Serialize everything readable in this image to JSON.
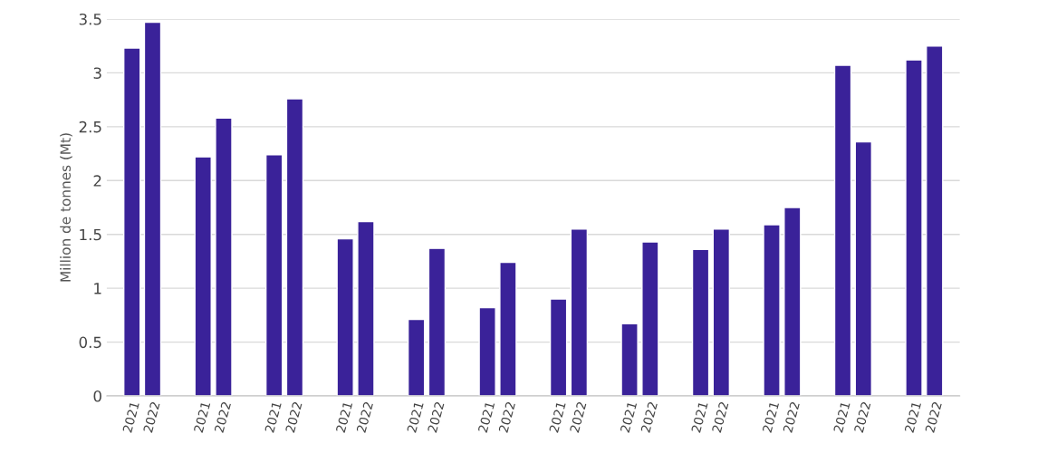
{
  "chart_data": {
    "type": "bar",
    "ylabel": "Million de tonnes (Mt)",
    "categories": [
      null,
      null,
      null,
      null,
      null,
      null,
      null,
      null,
      null,
      null,
      null,
      null
    ],
    "series": [
      {
        "name": "2021",
        "color": "#3a2299",
        "values": [
          3.23,
          2.22,
          2.24,
          1.46,
          0.71,
          0.82,
          0.9,
          0.67,
          1.36,
          1.59,
          3.07,
          3.12
        ]
      },
      {
        "name": "2022",
        "color": "#3a2299",
        "values": [
          3.47,
          2.58,
          2.76,
          1.62,
          1.37,
          1.24,
          1.55,
          1.43,
          1.55,
          1.75,
          2.36,
          3.25
        ]
      }
    ],
    "ylim": [
      0,
      3.5
    ],
    "yticks": [
      0,
      0.5,
      1,
      1.5,
      2,
      2.5,
      3,
      3.5
    ],
    "grid": "y"
  }
}
